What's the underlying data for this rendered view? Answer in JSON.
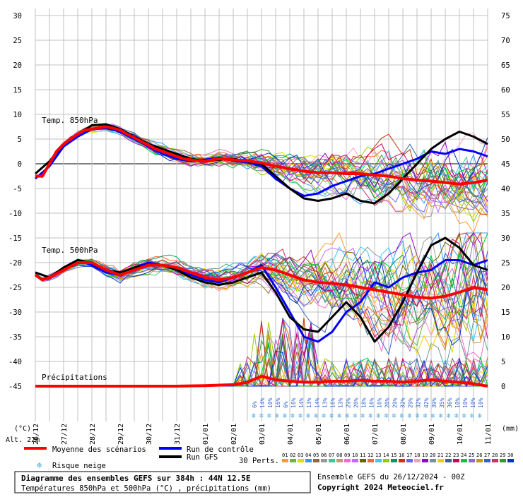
{
  "chart_data": {
    "type": "line",
    "title": "Diagramme des ensembles GEFS sur 384h : 44N 12.5E",
    "subtitle": "Températures 850hPa et 500hPa (°C) , précipitations (mm)",
    "run_label": "Ensemble GEFS du 26/12/2024 - 00Z",
    "copyright": "Copyright 2024 Meteociel.fr",
    "altitude_label": "Alt. 22m",
    "left_axis_unit": "(°C)",
    "right_axis_unit": "(mm)",
    "left_ticks": [
      30,
      25,
      20,
      15,
      10,
      5,
      0,
      -5,
      -10,
      -15,
      -20,
      -25,
      -30,
      -35,
      -40,
      -45
    ],
    "right_ticks": [
      75,
      70,
      65,
      60,
      55,
      50,
      45,
      40,
      35,
      30,
      25,
      20,
      15,
      10,
      5,
      0
    ],
    "ylim_temp": [
      -45,
      30
    ],
    "ylim_precip": [
      0,
      75
    ],
    "x_days": [
      0,
      16
    ],
    "x_labels": [
      "26/12",
      "27/12",
      "28/12",
      "29/12",
      "30/12",
      "31/12",
      "01/01",
      "02/01",
      "03/01",
      "04/01",
      "05/01",
      "06/01",
      "07/01",
      "08/01",
      "09/01",
      "10/01",
      "11/01"
    ],
    "panel_labels": {
      "t850": "Temp. 850hPa",
      "t500": "Temp. 500hPa",
      "precip": "Précipitations"
    },
    "legend": {
      "mean": "Moyenne des scénarios",
      "control": "Run de contrôle",
      "gfs": "Run GFS",
      "snow": "Risque neige",
      "perts_label": "30 Perts.",
      "pert_numbers": [
        "01",
        "02",
        "03",
        "04",
        "05",
        "06",
        "07",
        "08",
        "09",
        "10",
        "11",
        "12",
        "13",
        "14",
        "15",
        "16",
        "17",
        "18",
        "19",
        "20",
        "21",
        "22",
        "23",
        "24",
        "25",
        "26",
        "27",
        "28",
        "29",
        "30"
      ]
    },
    "colors": {
      "mean": "#ff0000",
      "control": "#0000ff",
      "gfs": "#000000",
      "grid": "#c0c0c0",
      "snow_icon": "#55aadd",
      "perts": [
        "#ff9933",
        "#66bb33",
        "#dddd00",
        "#3399ff",
        "#996633",
        "#999999",
        "#33cc99",
        "#cc9966",
        "#ff66cc",
        "#cc66ff",
        "#666600",
        "#ff6633",
        "#33ccff",
        "#99cc00",
        "#009966",
        "#cc3300",
        "#6666ff",
        "#ff99cc",
        "#9900cc",
        "#669999",
        "#ffcc00",
        "#336699",
        "#cc0066",
        "#00cc33",
        "#9966cc",
        "#cc9900",
        "#3366cc",
        "#cc3366",
        "#339933",
        "#0033cc"
      ]
    },
    "series": {
      "t850_mean": [
        [
          0,
          -2.5
        ],
        [
          0.25,
          -2.5
        ],
        [
          0.5,
          0
        ],
        [
          0.75,
          2.5
        ],
        [
          1,
          4
        ],
        [
          1.25,
          5
        ],
        [
          1.5,
          6
        ],
        [
          1.75,
          6.8
        ],
        [
          2,
          7
        ],
        [
          2.25,
          7.3
        ],
        [
          2.5,
          7.5
        ],
        [
          2.75,
          7.2
        ],
        [
          3,
          6.8
        ],
        [
          3.25,
          6
        ],
        [
          3.5,
          5.3
        ],
        [
          3.75,
          4.5
        ],
        [
          4,
          3.8
        ],
        [
          4.25,
          3
        ],
        [
          4.5,
          2.5
        ],
        [
          4.75,
          2
        ],
        [
          5,
          1.5
        ],
        [
          5.25,
          1
        ],
        [
          5.5,
          0.8
        ],
        [
          5.75,
          0.6
        ],
        [
          6,
          0.5
        ],
        [
          6.25,
          0.8
        ],
        [
          6.5,
          1
        ],
        [
          7,
          0.8
        ],
        [
          7.5,
          0.6
        ],
        [
          8,
          0.2
        ],
        [
          8.5,
          -0.5
        ],
        [
          9,
          -1
        ],
        [
          9.5,
          -1.5
        ],
        [
          10,
          -1.8
        ],
        [
          10.5,
          -1.8
        ],
        [
          11,
          -2
        ],
        [
          11.5,
          -2
        ],
        [
          12,
          -2.3
        ],
        [
          12.5,
          -2.5
        ],
        [
          13,
          -3
        ],
        [
          13.5,
          -3.3
        ],
        [
          14,
          -3.5
        ],
        [
          14.5,
          -3.8
        ],
        [
          15,
          -4.1
        ],
        [
          15.5,
          -3.8
        ],
        [
          16,
          -3.3
        ]
      ],
      "t850_control": [
        [
          0,
          -3
        ],
        [
          0.5,
          -0.5
        ],
        [
          1,
          3.5
        ],
        [
          1.5,
          5.5
        ],
        [
          2,
          7
        ],
        [
          2.5,
          7.2
        ],
        [
          3,
          6.5
        ],
        [
          3.5,
          5
        ],
        [
          4,
          3.5
        ],
        [
          4.5,
          2
        ],
        [
          5,
          1
        ],
        [
          5.5,
          0.5
        ],
        [
          6,
          0.8
        ],
        [
          6.5,
          1.2
        ],
        [
          7,
          0.6
        ],
        [
          7.5,
          0.3
        ],
        [
          8,
          -0.5
        ],
        [
          8.5,
          -3
        ],
        [
          9,
          -5
        ],
        [
          9.5,
          -6.5
        ],
        [
          10,
          -6
        ],
        [
          10.5,
          -4.5
        ],
        [
          11,
          -3.5
        ],
        [
          11.5,
          -2.5
        ],
        [
          12,
          -2
        ],
        [
          12.5,
          -1
        ],
        [
          13,
          0
        ],
        [
          13.5,
          1
        ],
        [
          14,
          2.5
        ],
        [
          14.5,
          2
        ],
        [
          15,
          3
        ],
        [
          15.5,
          2.5
        ],
        [
          16,
          1.5
        ]
      ],
      "t850_gfs": [
        [
          0,
          -2
        ],
        [
          0.5,
          0.5
        ],
        [
          1,
          4
        ],
        [
          1.5,
          6
        ],
        [
          2,
          7.8
        ],
        [
          2.5,
          8
        ],
        [
          3,
          7
        ],
        [
          3.5,
          5.5
        ],
        [
          4,
          4
        ],
        [
          4.5,
          3
        ],
        [
          5,
          2
        ],
        [
          5.5,
          1
        ],
        [
          6,
          0.5
        ],
        [
          6.5,
          0.8
        ],
        [
          7,
          1
        ],
        [
          7.5,
          0.5
        ],
        [
          8,
          0
        ],
        [
          8.5,
          -2.5
        ],
        [
          9,
          -5
        ],
        [
          9.5,
          -7
        ],
        [
          10,
          -7.5
        ],
        [
          10.5,
          -7
        ],
        [
          11,
          -6
        ],
        [
          11.5,
          -7.5
        ],
        [
          12,
          -8
        ],
        [
          12.5,
          -6
        ],
        [
          13,
          -3
        ],
        [
          13.5,
          0
        ],
        [
          14,
          3
        ],
        [
          14.5,
          5
        ],
        [
          15,
          6.5
        ],
        [
          15.5,
          5.5
        ],
        [
          16,
          4
        ]
      ],
      "t500_mean": [
        [
          0,
          -22.5
        ],
        [
          0.25,
          -23.5
        ],
        [
          0.5,
          -23
        ],
        [
          1,
          -21.5
        ],
        [
          1.5,
          -20
        ],
        [
          2,
          -20
        ],
        [
          2.5,
          -21.5
        ],
        [
          3,
          -22.5
        ],
        [
          3.5,
          -21.5
        ],
        [
          4,
          -20.5
        ],
        [
          4.5,
          -20.5
        ],
        [
          5,
          -21
        ],
        [
          5.5,
          -22
        ],
        [
          6,
          -23
        ],
        [
          6.5,
          -23.5
        ],
        [
          7,
          -23
        ],
        [
          7.5,
          -22
        ],
        [
          8,
          -21
        ],
        [
          8.5,
          -21.5
        ],
        [
          9,
          -22.5
        ],
        [
          9.5,
          -23.5
        ],
        [
          10,
          -24
        ],
        [
          10.5,
          -24.2
        ],
        [
          11,
          -24.5
        ],
        [
          11.5,
          -25
        ],
        [
          12,
          -25.5
        ],
        [
          12.5,
          -26
        ],
        [
          13,
          -26.5
        ],
        [
          13.5,
          -27
        ],
        [
          14,
          -27.2
        ],
        [
          14.5,
          -26.8
        ],
        [
          15,
          -26
        ],
        [
          15.5,
          -25
        ],
        [
          16,
          -25.5
        ]
      ],
      "t500_control": [
        [
          0,
          -22
        ],
        [
          0.5,
          -23
        ],
        [
          1,
          -21
        ],
        [
          1.5,
          -19.5
        ],
        [
          2,
          -20.5
        ],
        [
          2.5,
          -22
        ],
        [
          3,
          -22.5
        ],
        [
          3.5,
          -21
        ],
        [
          4,
          -20
        ],
        [
          4.5,
          -20.5
        ],
        [
          5,
          -21.5
        ],
        [
          5.5,
          -22.5
        ],
        [
          6,
          -23.5
        ],
        [
          6.5,
          -24
        ],
        [
          7,
          -23
        ],
        [
          7.5,
          -22
        ],
        [
          8,
          -20.5
        ],
        [
          8.5,
          -25
        ],
        [
          9,
          -30
        ],
        [
          9.5,
          -35
        ],
        [
          10,
          -36
        ],
        [
          10.5,
          -34
        ],
        [
          11,
          -30
        ],
        [
          11.5,
          -28
        ],
        [
          12,
          -24
        ],
        [
          12.5,
          -25
        ],
        [
          13,
          -23
        ],
        [
          13.5,
          -22
        ],
        [
          14,
          -21.5
        ],
        [
          14.5,
          -19.5
        ],
        [
          15,
          -19.5
        ],
        [
          15.5,
          -20.5
        ],
        [
          16,
          -19.5
        ]
      ],
      "t500_gfs": [
        [
          0,
          -22
        ],
        [
          0.5,
          -23
        ],
        [
          1,
          -21
        ],
        [
          1.5,
          -19.5
        ],
        [
          2,
          -20
        ],
        [
          2.5,
          -21.5
        ],
        [
          3,
          -22
        ],
        [
          3.5,
          -21
        ],
        [
          4,
          -20.5
        ],
        [
          4.5,
          -20.5
        ],
        [
          5,
          -21.5
        ],
        [
          5.5,
          -23
        ],
        [
          6,
          -24
        ],
        [
          6.5,
          -24.5
        ],
        [
          7,
          -24
        ],
        [
          7.5,
          -23
        ],
        [
          8,
          -22
        ],
        [
          8.5,
          -26
        ],
        [
          9,
          -31
        ],
        [
          9.5,
          -33.5
        ],
        [
          10,
          -34
        ],
        [
          10.5,
          -31
        ],
        [
          11,
          -28
        ],
        [
          11.5,
          -31
        ],
        [
          12,
          -36
        ],
        [
          12.5,
          -33
        ],
        [
          13,
          -28
        ],
        [
          13.5,
          -22
        ],
        [
          14,
          -16.5
        ],
        [
          14.5,
          -15
        ],
        [
          15,
          -17
        ],
        [
          15.5,
          -20.5
        ],
        [
          16,
          -21.5
        ]
      ],
      "precip_mean": [
        [
          0,
          0
        ],
        [
          1,
          0
        ],
        [
          2,
          0
        ],
        [
          3,
          0
        ],
        [
          4,
          0
        ],
        [
          5,
          0
        ],
        [
          6,
          0.1
        ],
        [
          7,
          0.3
        ],
        [
          7.5,
          0.8
        ],
        [
          8,
          2
        ],
        [
          8.5,
          1.3
        ],
        [
          9,
          1
        ],
        [
          9.5,
          0.8
        ],
        [
          10,
          0.8
        ],
        [
          10.5,
          1
        ],
        [
          11,
          1
        ],
        [
          11.5,
          1.2
        ],
        [
          12,
          1
        ],
        [
          12.5,
          1
        ],
        [
          13,
          0.8
        ],
        [
          13.5,
          1
        ],
        [
          14,
          1.3
        ],
        [
          14.5,
          1
        ],
        [
          15,
          0.8
        ],
        [
          15.5,
          0.5
        ],
        [
          16,
          0
        ]
      ],
      "snow_risk": [
        6,
        14,
        10,
        16,
        6,
        16,
        14,
        13,
        14,
        13,
        16,
        13,
        29,
        20,
        18,
        16,
        16,
        20,
        29,
        32,
        29,
        32,
        42,
        39,
        35,
        36,
        10,
        10,
        10,
        10
      ]
    }
  }
}
